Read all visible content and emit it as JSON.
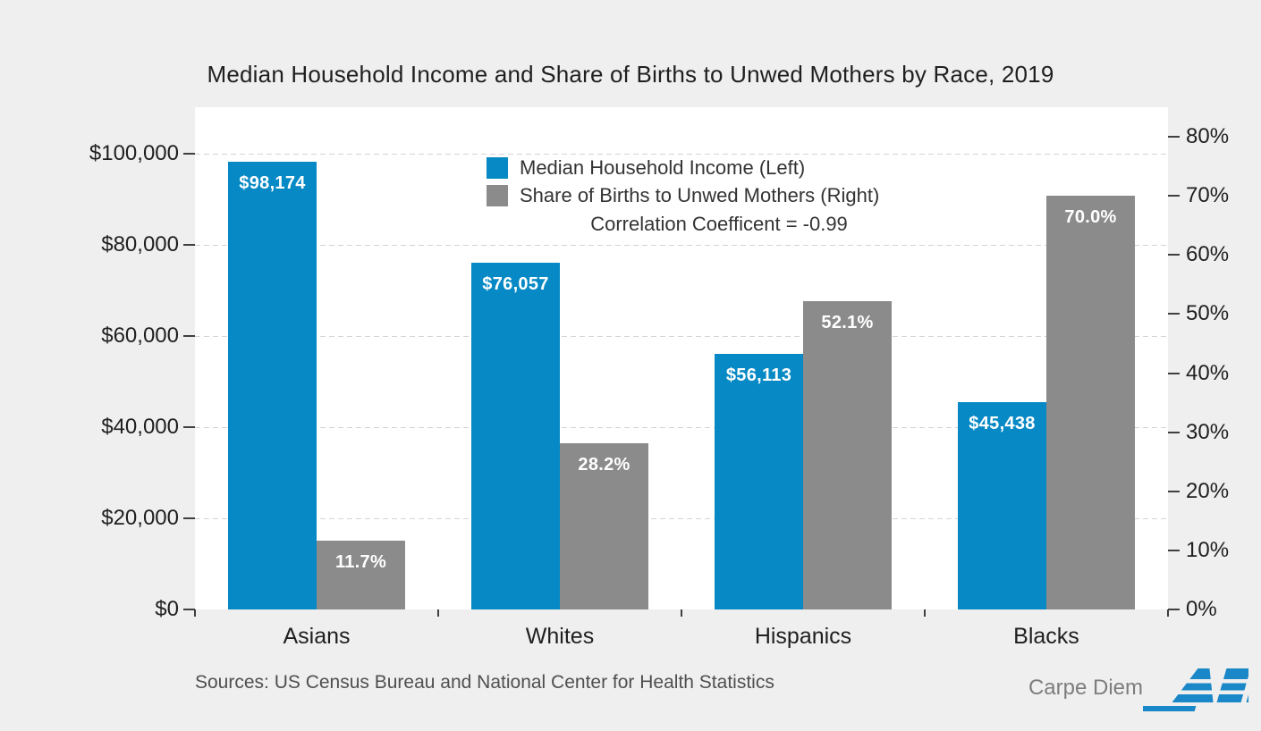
{
  "title": "Median Household Income and Share of Births to Unwed Mothers by Race, 2019",
  "legend": {
    "items": [
      {
        "label": "Median Household Income (Left)"
      },
      {
        "label": "Share of Births to Unwed Mothers (Right)"
      }
    ],
    "note": "Correlation Coefficent = -0.99"
  },
  "footer": {
    "sources": "Sources: US Census Bureau and National Center for Health Statistics",
    "credit": "Carpe Diem",
    "logo": "AEI"
  },
  "colors": {
    "income_blue": "#0689c5",
    "births_gray": "#8b8b8b",
    "background": "#efefef",
    "plot_background": "#ffffff",
    "grid": "#d4d4d4",
    "text": "#1f1f1f",
    "muted_text": "#4f4f4f",
    "logo_blue": "#1a87c8"
  },
  "chart_data": {
    "type": "bar",
    "title": "Median Household Income and Share of Births to Unwed Mothers by Race, 2019",
    "categories": [
      "Asians",
      "Whites",
      "Hispanics",
      "Blacks"
    ],
    "series": [
      {
        "name": "Median Household Income (Left)",
        "axis": "left",
        "color": "#0689c5",
        "values": [
          98174,
          76057,
          56113,
          45438
        ],
        "data_labels": [
          "$98,174",
          "$76,057",
          "$56,113",
          "$45,438"
        ]
      },
      {
        "name": "Share of Births to Unwed Mothers (Right)",
        "axis": "right",
        "color": "#8b8b8b",
        "values": [
          11.7,
          28.2,
          52.1,
          70.0
        ],
        "data_labels": [
          "11.7%",
          "28.2%",
          "52.1%",
          "70.0%"
        ]
      }
    ],
    "left_axis": {
      "min": 0,
      "max": 100000,
      "step": 20000,
      "tick_labels": [
        "$0",
        "$20,000",
        "$40,000",
        "$60,000",
        "$80,000",
        "$100,000"
      ]
    },
    "right_axis": {
      "min": 0,
      "max": 80,
      "step": 10,
      "tick_labels": [
        "0%",
        "10%",
        "20%",
        "30%",
        "40%",
        "50%",
        "60%",
        "70%",
        "80%"
      ]
    },
    "annotation": "Correlation Coefficent = -0.99",
    "grid": {
      "horizontal": true,
      "style": "dashed",
      "on_axis": "left"
    },
    "legend_position": "top-center-inside"
  }
}
